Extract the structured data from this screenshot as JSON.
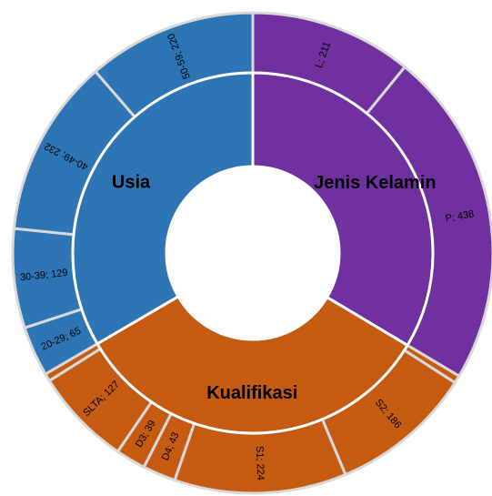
{
  "chart_data": {
    "type": "sunburst",
    "series": [
      {
        "name": "Jenis Kelamin",
        "color": "#7030a0",
        "children": [
          {
            "value": 211,
            "value_label": "L; 211"
          },
          {
            "value": 438,
            "value_label": "P; 438"
          }
        ]
      },
      {
        "name": "Kualifikasi",
        "color": "#c55a11",
        "children": [
          {
            "value": 10,
            "value_label": null
          },
          {
            "value": 186,
            "value_label": "S2; 186"
          },
          {
            "value": 224,
            "value_label": "S1; 224"
          },
          {
            "value": 43,
            "value_label": "D4; 43"
          },
          {
            "value": 39,
            "value_label": "D3; 39"
          },
          {
            "value": 127,
            "value_label": "SLTA; 127"
          },
          {
            "value": 10,
            "value_label": null
          }
        ]
      },
      {
        "name": "Usia",
        "color": "#2e75b6",
        "children": [
          {
            "value": 65,
            "value_label": "20-29; 65"
          },
          {
            "value": 129,
            "value_label": "30-39; 129"
          },
          {
            "value": 232,
            "value_label": "40-49; 232"
          },
          {
            "value": 220,
            "value_label": "50-59; 220"
          }
        ]
      }
    ]
  }
}
